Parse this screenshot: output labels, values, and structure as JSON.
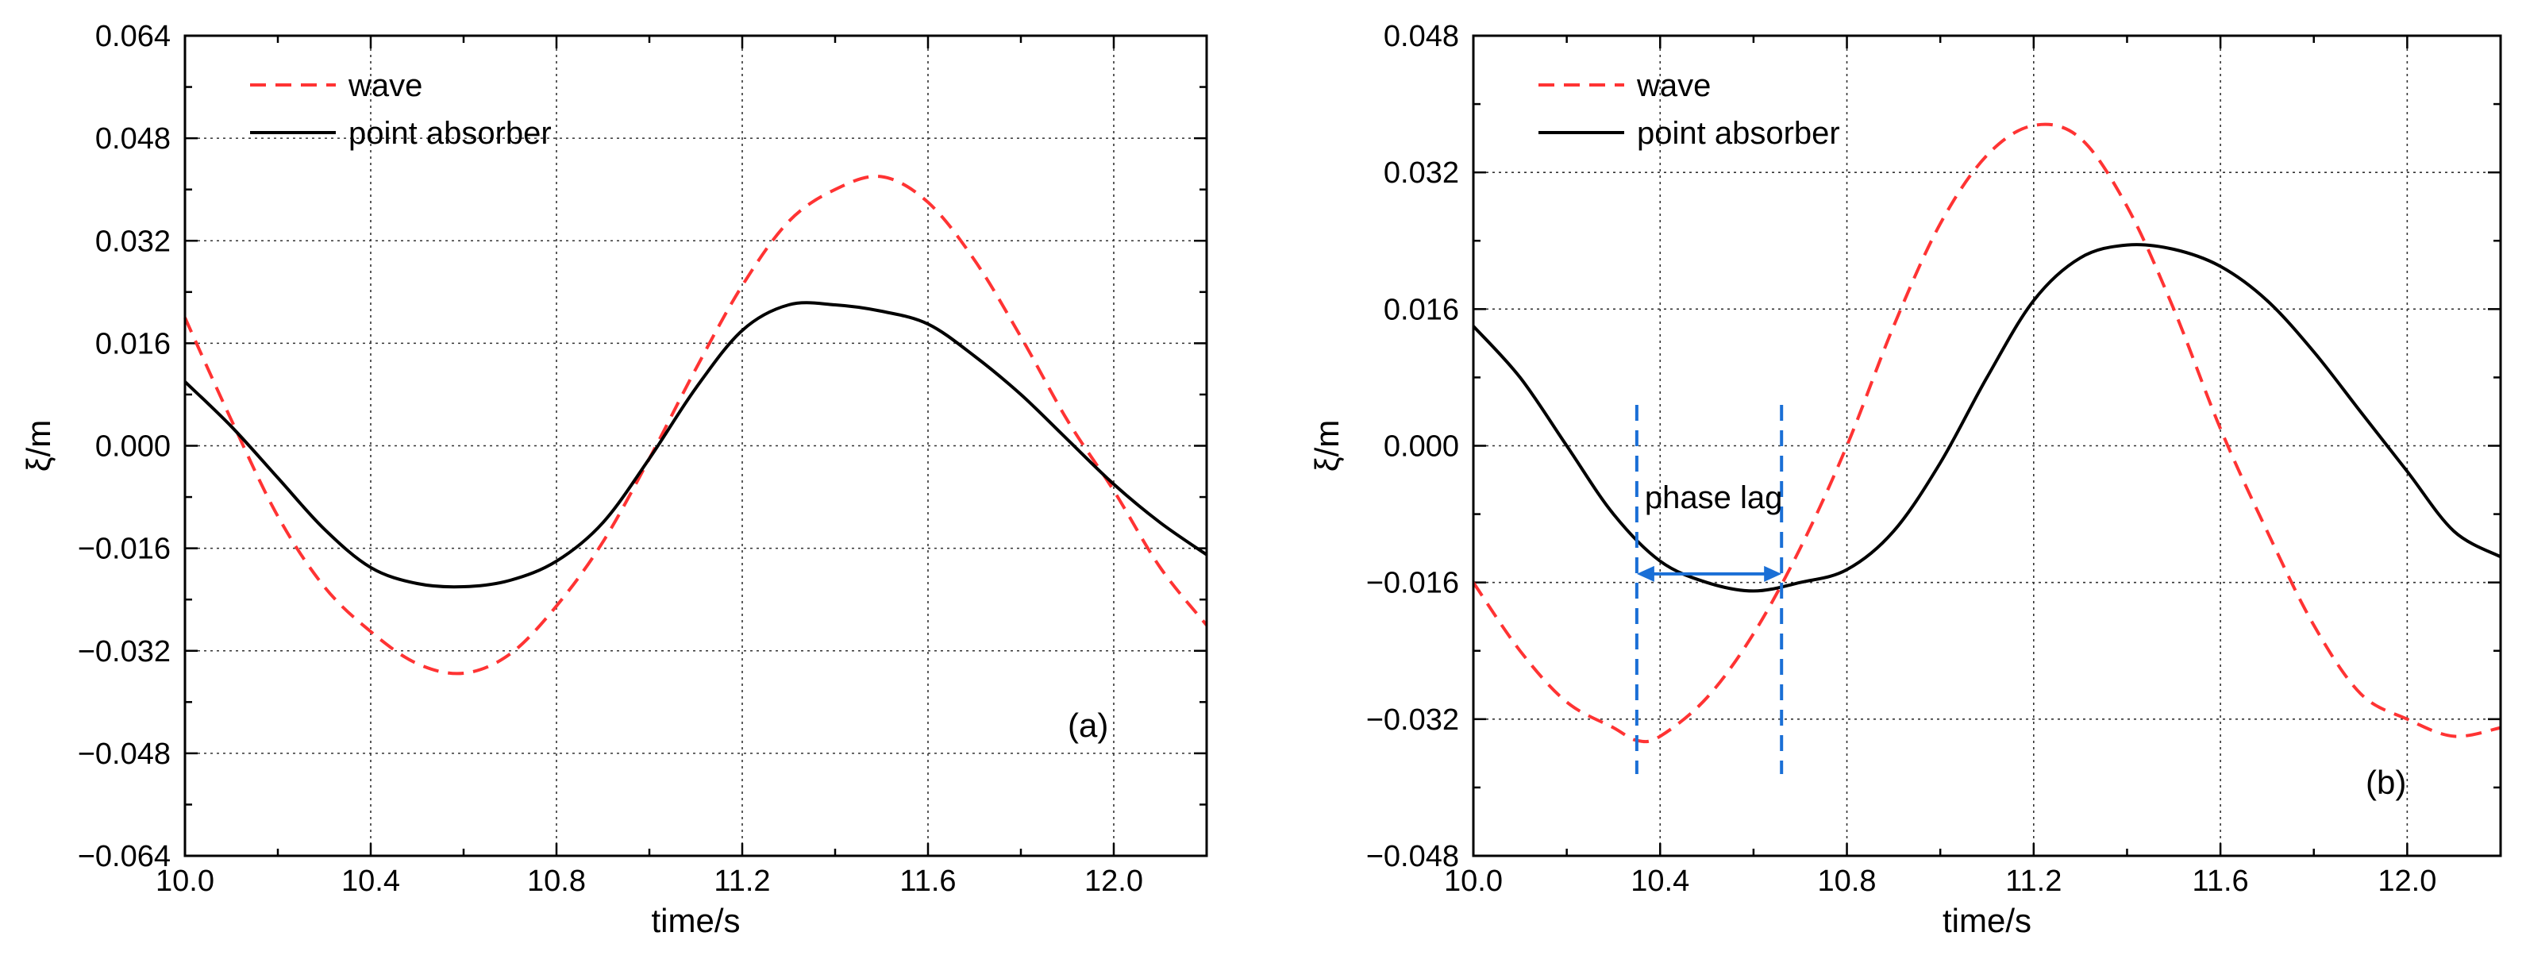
{
  "chart_data": [
    {
      "panel_label": "(a)",
      "type": "line",
      "xlabel": "time/s",
      "ylabel": "ξ/m",
      "xlim": [
        10.0,
        12.2
      ],
      "ylim": [
        -0.064,
        0.064
      ],
      "xticks": [
        10.0,
        10.4,
        10.8,
        11.2,
        11.6,
        12.0
      ],
      "xtick_labels": [
        "10.0",
        "10.4",
        "10.8",
        "11.2",
        "11.6",
        "12.0"
      ],
      "yticks": [
        -0.064,
        -0.048,
        -0.032,
        -0.016,
        0.0,
        0.016,
        0.032,
        0.048,
        0.064
      ],
      "ytick_labels": [
        "−0.064",
        "−0.048",
        "−0.032",
        "−0.016",
        "0.000",
        "0.016",
        "0.032",
        "0.048",
        "0.064"
      ],
      "grid": true,
      "legend_position": "top-left",
      "series": [
        {
          "name": "wave",
          "style": "dashed",
          "color": "#ff3333",
          "x": [
            10.0,
            10.1,
            10.2,
            10.3,
            10.4,
            10.5,
            10.6,
            10.7,
            10.8,
            10.9,
            11.0,
            11.1,
            11.2,
            11.3,
            11.4,
            11.5,
            11.6,
            11.7,
            11.8,
            11.9,
            12.0,
            12.1,
            12.2
          ],
          "values": [
            0.02,
            0.004,
            -0.011,
            -0.022,
            -0.029,
            -0.034,
            -0.0355,
            -0.0325,
            -0.025,
            -0.015,
            -0.002,
            0.012,
            0.025,
            0.035,
            0.04,
            0.042,
            0.038,
            0.029,
            0.017,
            0.004,
            -0.007,
            -0.019,
            -0.028
          ]
        },
        {
          "name": "point absorber",
          "style": "solid",
          "color": "#000000",
          "x": [
            10.0,
            10.1,
            10.2,
            10.3,
            10.4,
            10.5,
            10.6,
            10.7,
            10.8,
            10.9,
            11.0,
            11.1,
            11.2,
            11.3,
            11.4,
            11.5,
            11.6,
            11.7,
            11.8,
            11.9,
            12.0,
            12.1,
            12.2
          ],
          "values": [
            0.01,
            0.003,
            -0.005,
            -0.013,
            -0.019,
            -0.0215,
            -0.022,
            -0.021,
            -0.018,
            -0.012,
            -0.002,
            0.009,
            0.018,
            0.022,
            0.022,
            0.021,
            0.019,
            0.014,
            0.008,
            0.001,
            -0.006,
            -0.012,
            -0.017
          ]
        }
      ]
    },
    {
      "panel_label": "(b)",
      "type": "line",
      "xlabel": "time/s",
      "ylabel": "ξ/m",
      "xlim": [
        10.0,
        12.2
      ],
      "ylim": [
        -0.048,
        0.048
      ],
      "xticks": [
        10.0,
        10.4,
        10.8,
        11.2,
        11.6,
        12.0
      ],
      "xtick_labels": [
        "10.0",
        "10.4",
        "10.8",
        "11.2",
        "11.6",
        "12.0"
      ],
      "yticks": [
        -0.048,
        -0.032,
        -0.016,
        0.0,
        0.016,
        0.032,
        0.048
      ],
      "ytick_labels": [
        "−0.048",
        "−0.032",
        "−0.016",
        "0.000",
        "0.016",
        "0.032",
        "0.048"
      ],
      "grid": true,
      "legend_position": "top-left",
      "annotation": {
        "text": "phase lag",
        "x_start": 10.35,
        "x_end": 10.66,
        "arrow_y": -0.015,
        "color": "#1a6fd6"
      },
      "series": [
        {
          "name": "wave",
          "style": "dashed",
          "color": "#ff3333",
          "x": [
            10.0,
            10.1,
            10.2,
            10.3,
            10.35,
            10.4,
            10.5,
            10.6,
            10.7,
            10.8,
            10.9,
            11.0,
            11.1,
            11.2,
            11.3,
            11.4,
            11.5,
            11.6,
            11.7,
            11.8,
            11.9,
            12.0,
            12.1,
            12.2
          ],
          "values": [
            -0.016,
            -0.024,
            -0.03,
            -0.033,
            -0.0345,
            -0.034,
            -0.0295,
            -0.022,
            -0.012,
            0.0,
            0.014,
            0.026,
            0.034,
            0.0375,
            0.036,
            0.028,
            0.016,
            0.002,
            -0.01,
            -0.021,
            -0.029,
            -0.032,
            -0.034,
            -0.033
          ]
        },
        {
          "name": "point absorber",
          "style": "solid",
          "color": "#000000",
          "x": [
            10.0,
            10.1,
            10.2,
            10.3,
            10.4,
            10.5,
            10.6,
            10.7,
            10.8,
            10.9,
            11.0,
            11.1,
            11.2,
            11.3,
            11.4,
            11.5,
            11.6,
            11.7,
            11.8,
            11.9,
            12.0,
            12.1,
            12.2
          ],
          "values": [
            0.014,
            0.008,
            0.0,
            -0.008,
            -0.0135,
            -0.016,
            -0.017,
            -0.016,
            -0.0145,
            -0.01,
            -0.002,
            0.008,
            0.017,
            0.022,
            0.0235,
            0.023,
            0.021,
            0.017,
            0.011,
            0.004,
            -0.003,
            -0.01,
            -0.013
          ]
        }
      ]
    }
  ]
}
